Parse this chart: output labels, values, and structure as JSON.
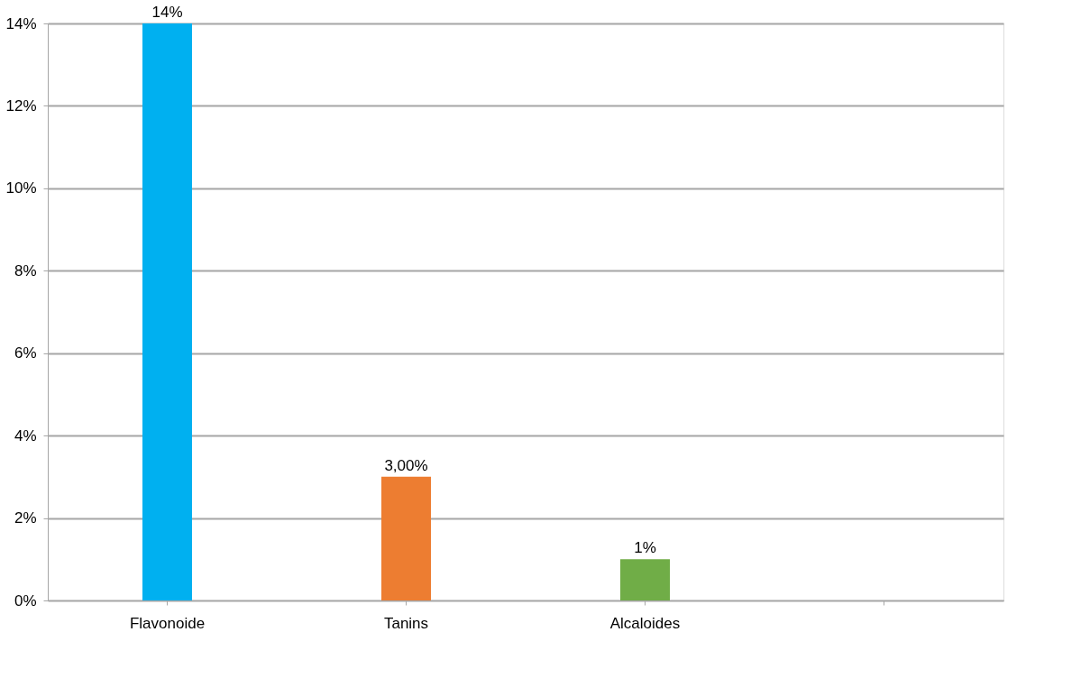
{
  "chart_data": {
    "type": "bar",
    "categories": [
      "Flavonoide",
      "Tanins",
      "Alcaloides",
      null
    ],
    "values": [
      14,
      3,
      1,
      null
    ],
    "colors": [
      "#00b0f0",
      "#ed7d31",
      "#70ad47",
      "#7f7f7f"
    ],
    "value_labels": [
      "14%",
      "3,00%",
      "1%",
      null
    ],
    "ylim": [
      0,
      14
    ],
    "yticks": [
      {
        "value": 0,
        "label": "0%"
      },
      {
        "value": 2,
        "label": "2%"
      },
      {
        "value": 4,
        "label": "4%"
      },
      {
        "value": 6,
        "label": "6%"
      },
      {
        "value": 8,
        "label": "8%"
      },
      {
        "value": 10,
        "label": "10%"
      },
      {
        "value": 12,
        "label": "12%"
      },
      {
        "value": 14,
        "label": "14%"
      }
    ],
    "grid": "y"
  }
}
